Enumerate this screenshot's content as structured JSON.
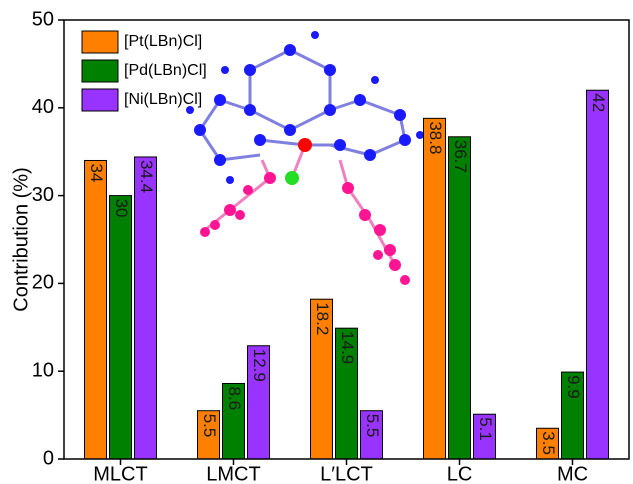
{
  "chart_data": {
    "type": "bar",
    "y_label": "Contribution (%)",
    "categories": [
      "MLCT",
      "LMCT",
      "L′LCT",
      "LC",
      "MC"
    ],
    "series": [
      {
        "name": "[Pt(LBn)Cl]",
        "color": "#ff8000",
        "values": [
          34,
          5.5,
          18.2,
          38.8,
          3.5
        ]
      },
      {
        "name": "[Pd(LBn)Cl]",
        "color": "#008000",
        "values": [
          30,
          8.6,
          14.9,
          36.7,
          9.9
        ]
      },
      {
        "name": "[Ni(LBn)Cl]",
        "color": "#9933ff",
        "values": [
          34.4,
          12.9,
          5.5,
          5.1,
          42
        ]
      }
    ],
    "ylim": [
      0,
      50
    ],
    "yticks": [
      0,
      10,
      20,
      30,
      40,
      50
    ]
  }
}
